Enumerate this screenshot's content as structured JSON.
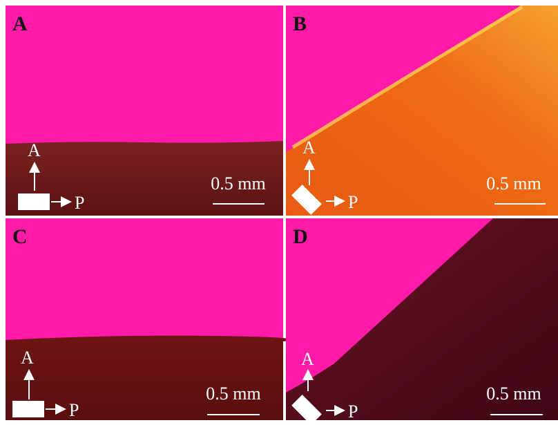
{
  "panels": [
    {
      "label": "A",
      "scale": "0.5 mm",
      "analyzer": "A",
      "polarizer": "P"
    },
    {
      "label": "B",
      "scale": "0.5 mm",
      "analyzer": "A",
      "polarizer": "P"
    },
    {
      "label": "C",
      "scale": "0.5 mm",
      "analyzer": "A",
      "polarizer": "P"
    },
    {
      "label": "D",
      "scale": "0.5 mm",
      "analyzer": "A",
      "polarizer": "P"
    }
  ]
}
